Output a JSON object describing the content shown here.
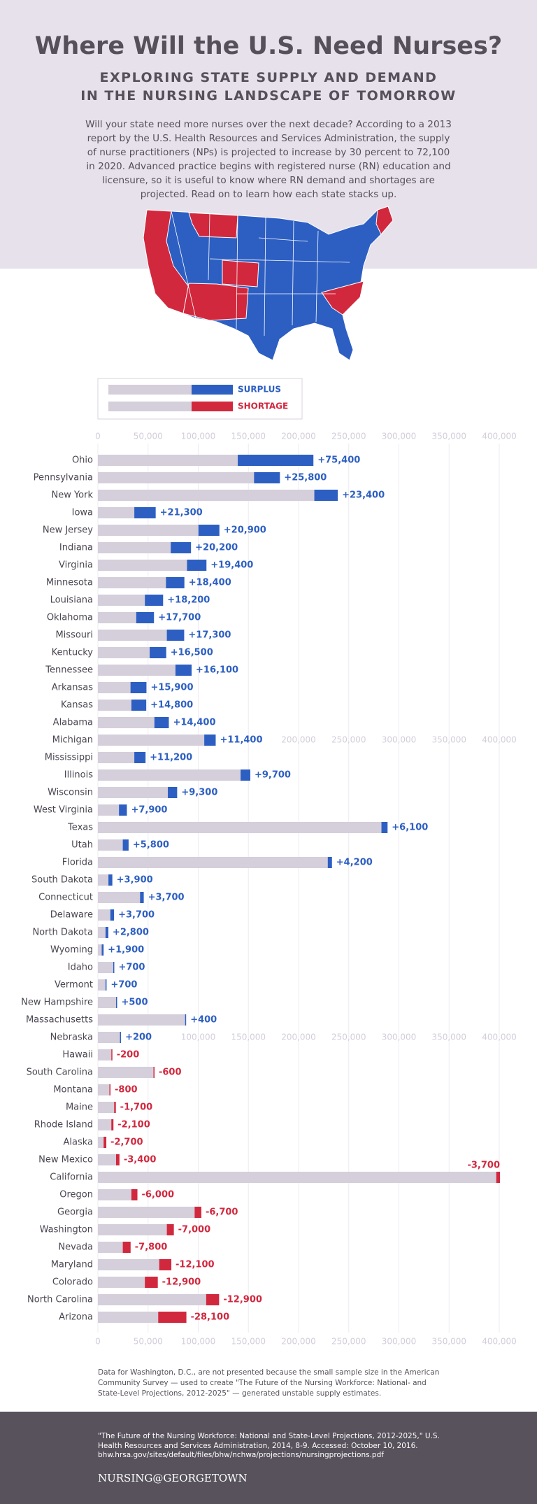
{
  "header": {
    "title": "Where Will the U.S. Need Nurses?",
    "subtitle_lines": [
      "EXPLORING STATE SUPPLY AND DEMAND",
      "IN THE NURSING LANDSCAPE OF TOMORROW"
    ],
    "intro": "Will your state need more nurses over the next decade? According to a 2013 report by the U.S. Health Resources and Services Administration, the supply of nurse practitioners (NPs) is projected to increase by 30 percent to 72,100 in 2020. Advanced practice begins with registered nurse (RN) education and licensure, so it is useful to know where RN demand and shortages are projected. Read on to learn how each state stacks up."
  },
  "chart_data": {
    "type": "bar",
    "orientation": "horizontal",
    "stacked": true,
    "legend": [
      {
        "name": "SURPLUS",
        "color": "#2d5fc2"
      },
      {
        "name": "SHORTAGE",
        "color": "#d1283e"
      }
    ],
    "categories": [
      "Ohio",
      "Pennsylvania",
      "New York",
      "Iowa",
      "New Jersey",
      "Indiana",
      "Virginia",
      "Minnesota",
      "Louisiana",
      "Oklahoma",
      "Missouri",
      "Kentucky",
      "Tennessee",
      "Arkansas",
      "Kansas",
      "Alabama",
      "Michigan",
      "Mississippi",
      "Illinois",
      "Wisconsin",
      "West Virginia",
      "Texas",
      "Utah",
      "Florida",
      "South Dakota",
      "Connecticut",
      "Delaware",
      "North Dakota",
      "Wyoming",
      "Idaho",
      "Vermont",
      "New Hampshire",
      "Massachusetts",
      "Nebraska",
      "Hawaii",
      "South Carolina",
      "Montana",
      "Maine",
      "Rhode Island",
      "Alaska",
      "New Mexico",
      "California",
      "Oregon",
      "Georgia",
      "Washington",
      "Nevada",
      "Maryland",
      "Colorado",
      "North Carolina",
      "Arizona"
    ],
    "base": {
      "color": "#d5cedb",
      "values": [
        139400,
        155600,
        215700,
        36300,
        100200,
        72600,
        88800,
        67800,
        46800,
        38200,
        68700,
        51600,
        77300,
        32500,
        33400,
        56300,
        106000,
        36300,
        142200,
        69700,
        21000,
        282600,
        24800,
        229100,
        10500,
        42000,
        12400,
        7600,
        3800,
        15300,
        7600,
        18100,
        86900,
        22000,
        13400,
        55400,
        11500,
        16200,
        13400,
        5700,
        18100,
        397000,
        33400,
        96400,
        68700,
        24800,
        61100,
        46800,
        107900,
        60100
      ]
    },
    "change": {
      "values": [
        75400,
        25800,
        23400,
        21300,
        20900,
        20200,
        19400,
        18400,
        18200,
        17700,
        17300,
        16500,
        16100,
        15900,
        14800,
        14400,
        11400,
        11200,
        9700,
        9300,
        7900,
        6100,
        5800,
        4200,
        3900,
        3700,
        3700,
        2800,
        1900,
        700,
        700,
        500,
        400,
        200,
        -200,
        -600,
        -800,
        -1700,
        -2100,
        -2700,
        -3400,
        -3700,
        -6000,
        -6700,
        -7000,
        -7800,
        -12100,
        -12900,
        -12900,
        -28100
      ],
      "value_labels": [
        "+75,400",
        "+25,800",
        "+23,400",
        "+21,300",
        "+20,900",
        "+20,200",
        "+19,400",
        "+18,400",
        "+18,200",
        "+17,700",
        "+17,300",
        "+16,500",
        "+16,100",
        "+15,900",
        "+14,800",
        "+14,400",
        "+11,400",
        "+11,200",
        "+9,700",
        "+9,300",
        "+7,900",
        "+6,100",
        "+5,800",
        "+4,200",
        "+3,900",
        "+3,700",
        "+3,700",
        "+2,800",
        "+1,900",
        "+700",
        "+700",
        "+500",
        "+400",
        "+200",
        "-200",
        "-600",
        "-800",
        "-1,700",
        "-2,100",
        "-2,700",
        "-3,400",
        "-3,700",
        "-6,000",
        "-6,700",
        "-7,000",
        "-7,800",
        "-12,100",
        "-12,900",
        "-12,900",
        "-28,100"
      ]
    },
    "xlim": [
      0,
      400000
    ],
    "xticks": [
      0,
      {
        "value": 50000,
        "label": "50,000"
      },
      {
        "value": 100000,
        "label": "100,000"
      },
      {
        "value": 150000,
        "label": "150,000"
      },
      {
        "value": 200000,
        "label": "200,000"
      },
      {
        "value": 250000,
        "label": "250,000"
      },
      {
        "value": 300000,
        "label": "300,000"
      },
      {
        "value": 350000,
        "label": "350,000"
      },
      {
        "value": 400000,
        "label": "400,000"
      }
    ],
    "grid": true
  },
  "footnote": "Data for Washington, D.C., are not presented because the small sample size in the American Community Survey — used to create \"The Future of the Nursing Workforce: National- and State-Level Projections, 2012-2025\" — generated unstable supply estimates.",
  "footer": {
    "citation": "\"The Future of the Nursing Workforce: National and State-Level Projections, 2012-2025,\" U.S. Health Resources and Services Administration, 2014, 8-9. Accessed: October 10, 2016.",
    "url": "bhw.hrsa.gov/sites/default/files/bhw/nchwa/projections/nursingprojections.pdf",
    "brand": "NURSING@GEORGETOWN"
  }
}
